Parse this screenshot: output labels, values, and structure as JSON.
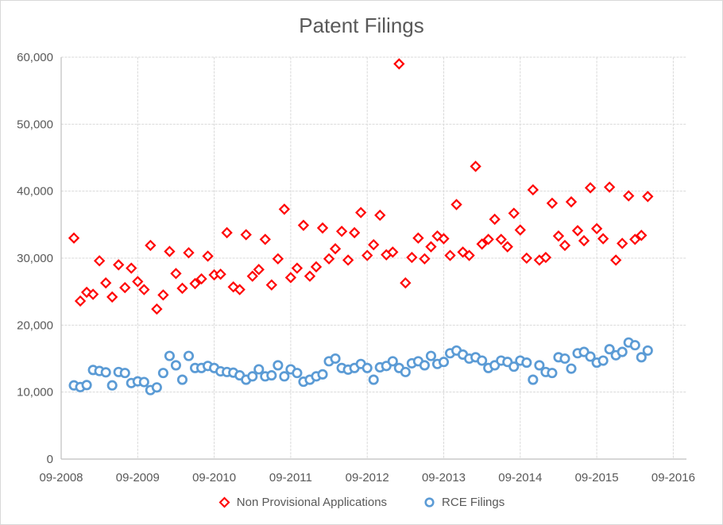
{
  "title": "Patent Filings",
  "chart_data": {
    "type": "scatter",
    "title": "Patent Filings",
    "grid": true,
    "legend_position": "bottom",
    "x_axis": {
      "tick_labels": [
        "09-2008",
        "09-2009",
        "09-2010",
        "09-2011",
        "09-2012",
        "09-2013",
        "09-2014",
        "09-2015",
        "09-2016"
      ],
      "start": "09-2008",
      "end": "09-2016",
      "unit": "months",
      "first_point": "11-2008",
      "first_point_month_offset": 2
    },
    "y_axis": {
      "min": 0,
      "max": 60000,
      "tick_interval": 10000,
      "tick_labels": [
        "0",
        "10,000",
        "20,000",
        "30,000",
        "40,000",
        "50,000",
        "60,000"
      ]
    },
    "series": [
      {
        "name": "Non Provisional Applications",
        "marker": "diamond",
        "color": "#FF0000",
        "interval": "monthly",
        "values": [
          33000,
          23600,
          24900,
          24600,
          29600,
          26300,
          24200,
          29000,
          25600,
          28500,
          26500,
          25300,
          31900,
          22400,
          24500,
          31000,
          27700,
          25500,
          30800,
          26200,
          26900,
          30300,
          27500,
          27600,
          33800,
          25700,
          25300,
          33500,
          27300,
          28300,
          32800,
          26000,
          29900,
          37300,
          27100,
          28500,
          34900,
          27300,
          28700,
          34500,
          29900,
          31400,
          34000,
          29700,
          33800,
          36800,
          30400,
          32000,
          36400,
          30500,
          30900,
          59000,
          26300,
          30100,
          33000,
          29900,
          31700,
          33300,
          32900,
          30400,
          38000,
          30900,
          30400,
          43700,
          32100,
          32800,
          35800,
          32800,
          31700,
          36700,
          34200,
          30000,
          40200,
          29700,
          30100,
          38200,
          33300,
          31900,
          38400,
          34100,
          32600,
          40500,
          34400,
          32900,
          40600,
          29700,
          32200,
          39300,
          32800,
          33400,
          39200
        ]
      },
      {
        "name": "RCE Filings",
        "marker": "circle",
        "color": "#5B9BD5",
        "interval": "monthly",
        "values": [
          11000,
          10750,
          11050,
          13300,
          13150,
          12950,
          11000,
          13000,
          12850,
          11350,
          11600,
          11500,
          10300,
          10700,
          12850,
          15400,
          14000,
          11850,
          15400,
          13600,
          13600,
          13900,
          13600,
          13100,
          13000,
          12900,
          12500,
          11850,
          12350,
          13400,
          12350,
          12500,
          14000,
          12350,
          13400,
          12850,
          11550,
          11850,
          12350,
          12650,
          14600,
          15000,
          13600,
          13350,
          13600,
          14200,
          13600,
          11850,
          13700,
          13900,
          14600,
          13600,
          13000,
          14300,
          14600,
          14000,
          15400,
          14200,
          14500,
          15800,
          16200,
          15600,
          15000,
          15200,
          14700,
          13600,
          14000,
          14700,
          14500,
          13800,
          14700,
          14400,
          11850,
          14000,
          13000,
          12850,
          15200,
          15000,
          13500,
          15800,
          16000,
          15300,
          14400,
          14700,
          16400,
          15500,
          16000,
          17400,
          17000,
          15200,
          16200
        ]
      }
    ]
  },
  "colors": {
    "text": "#595959",
    "gridline": "#D9D9D9",
    "axis_line": "#BFBFBF",
    "background": "#FFFFFF",
    "nonprovisional_marker": "#FF0000",
    "rce_marker": "#5B9BD5"
  }
}
